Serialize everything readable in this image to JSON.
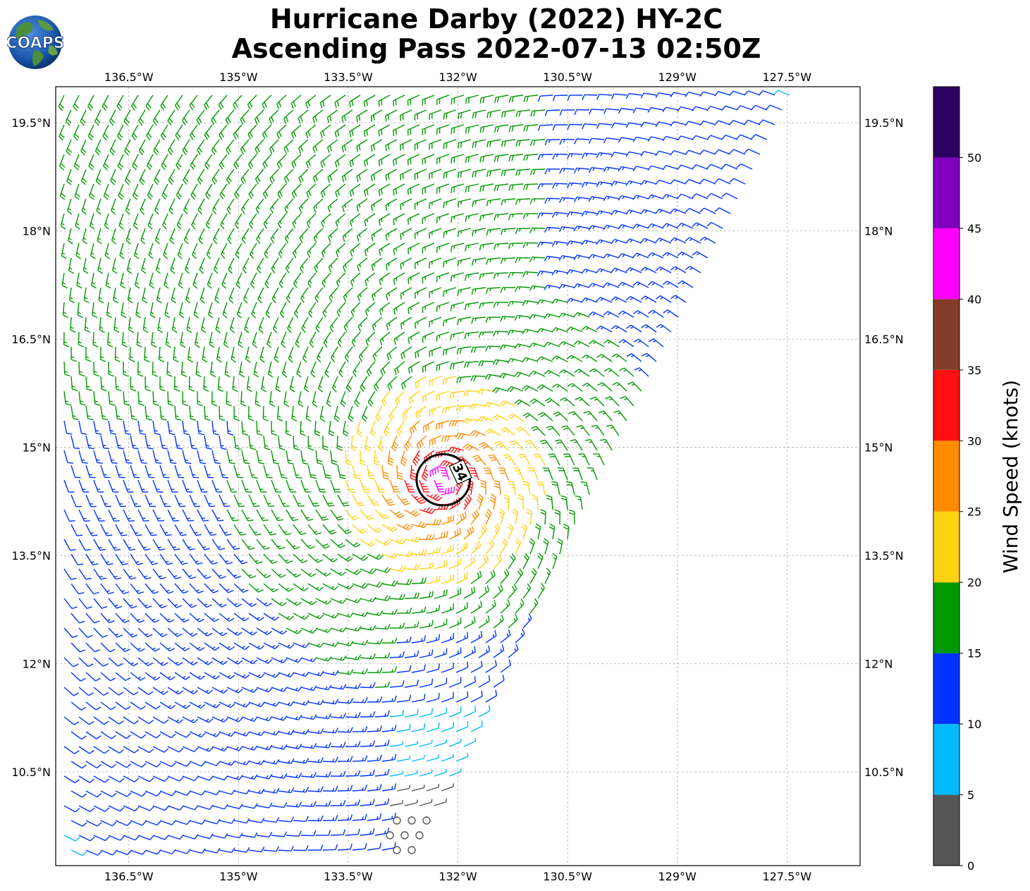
{
  "title": {
    "line1": "Hurricane Darby (2022) HY-2C",
    "line2": "Ascending Pass 2022-07-13 02:50Z"
  },
  "logo": {
    "text": "COAPS",
    "icon": "globe-logo-icon"
  },
  "map": {
    "lon_range": [
      -137.5,
      -126.5
    ],
    "lat_range": [
      9.2,
      20.0
    ],
    "lon_ticks": [
      {
        "value": -136.5,
        "label": "136.5°W"
      },
      {
        "value": -135.0,
        "label": "135°W"
      },
      {
        "value": -133.5,
        "label": "133.5°W"
      },
      {
        "value": -132.0,
        "label": "132°W"
      },
      {
        "value": -130.5,
        "label": "130.5°W"
      },
      {
        "value": -129.0,
        "label": "129°W"
      },
      {
        "value": -127.5,
        "label": "127.5°W"
      }
    ],
    "lat_ticks": [
      {
        "value": 19.5,
        "label": "19.5°N"
      },
      {
        "value": 18.0,
        "label": "18°N"
      },
      {
        "value": 16.5,
        "label": "16.5°N"
      },
      {
        "value": 15.0,
        "label": "15°N"
      },
      {
        "value": 13.5,
        "label": "13.5°N"
      },
      {
        "value": 12.0,
        "label": "12°N"
      },
      {
        "value": 10.5,
        "label": "10.5°N"
      }
    ],
    "gridlines": true,
    "storm_center": {
      "lon": -132.2,
      "lat": 14.55
    },
    "wind_radius_ring": {
      "label": "34",
      "radius_deg": 0.38
    }
  },
  "colorbar": {
    "title": "Wind Speed (knots)",
    "ticks": [
      "0",
      "5",
      "10",
      "15",
      "20",
      "25",
      "30",
      "35",
      "40",
      "45",
      "50"
    ],
    "colors": [
      "#555555",
      "#00bbff",
      "#0033ff",
      "#009900",
      "#ffd214",
      "#ff8c00",
      "#ff1010",
      "#843c28",
      "#ff00ff",
      "#8000c0",
      "#2a0060"
    ],
    "bounds": [
      0,
      55
    ]
  }
}
